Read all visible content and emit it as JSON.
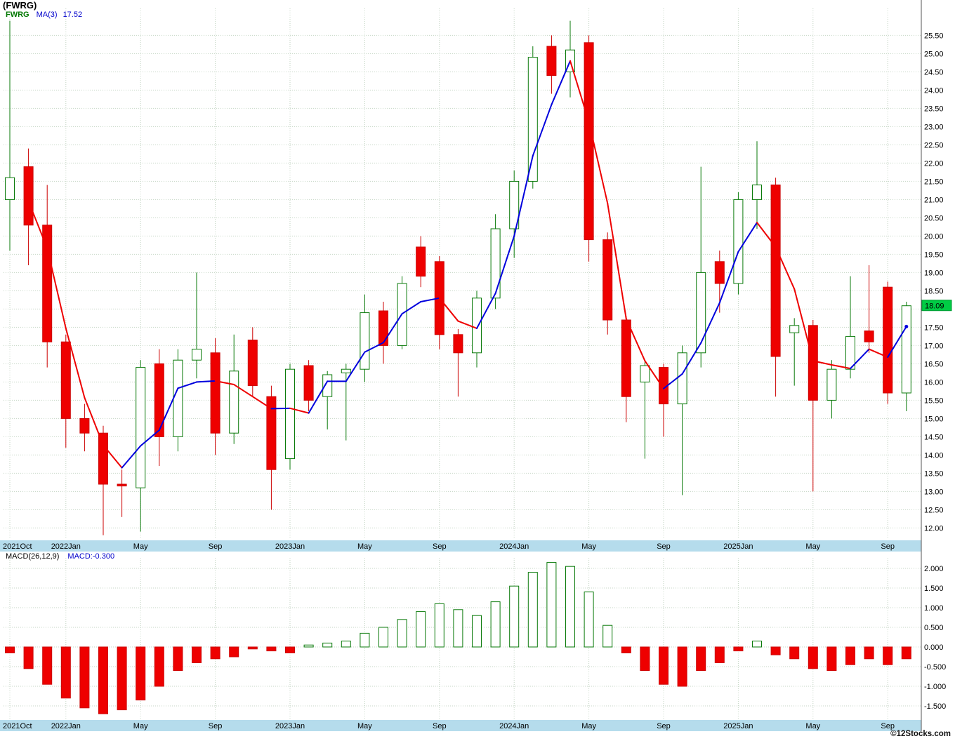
{
  "page": {
    "title": "(FWRG)",
    "watermark": "©12Stocks.com"
  },
  "price_chart": {
    "legend": {
      "symbol": "FWRG",
      "ma_label": "MA(3)",
      "ma_value": "17.52"
    },
    "last_price_label": "18.09"
  },
  "macd_chart": {
    "legend_label": "MACD(26,12,9)",
    "legend_value": "MACD:-0.300"
  },
  "colors": {
    "up_fill": "#ffffff",
    "up_stroke": "#0a7a0a",
    "down_fill": "#ee0000",
    "down_stroke": "#cc0000",
    "ma_rising": "#0000dd",
    "ma_falling": "#ee0000",
    "grid": "#c5d6c5",
    "axis_band": "#b5dcec",
    "axis_text": "#000000",
    "last_price_bg": "#00cc44",
    "separator": "#555555"
  },
  "chart_data": [
    {
      "type": "candlestick",
      "title": "(FWRG)",
      "symbol": "FWRG",
      "x_unit": "month",
      "ylim": [
        11.7,
        26.2
      ],
      "grid": true,
      "y_ticks": [
        25.5,
        25.0,
        24.5,
        24.0,
        23.5,
        23.0,
        22.5,
        22.0,
        21.5,
        21.0,
        20.5,
        20.0,
        19.5,
        19.0,
        18.5,
        18.0,
        17.5,
        17.0,
        16.5,
        16.0,
        15.5,
        15.0,
        14.5,
        14.0,
        13.5,
        13.0,
        12.5,
        12.0
      ],
      "hidden_y_tick": 18.0,
      "last_close": 18.09,
      "ma_period": 3,
      "ma_last_shown": 17.52,
      "x_tick_indices": [
        0,
        3,
        7,
        11,
        15,
        19,
        23,
        27,
        31,
        35,
        39,
        43,
        47
      ],
      "x_tick_labels": [
        "2021Oct",
        "2022Jan",
        "May",
        "Sep",
        "2023Jan",
        "May",
        "Sep",
        "2024Jan",
        "May",
        "Sep",
        "2025Jan",
        "May",
        "Sep"
      ],
      "months": [
        "2021-10",
        "2021-11",
        "2021-12",
        "2022-01",
        "2022-02",
        "2022-03",
        "2022-04",
        "2022-05",
        "2022-06",
        "2022-07",
        "2022-08",
        "2022-09",
        "2022-10",
        "2022-11",
        "2022-12",
        "2023-01",
        "2023-02",
        "2023-03",
        "2023-04",
        "2023-05",
        "2023-06",
        "2023-07",
        "2023-08",
        "2023-09",
        "2023-10",
        "2023-11",
        "2023-12",
        "2024-01",
        "2024-02",
        "2024-03",
        "2024-04",
        "2024-05",
        "2024-06",
        "2024-07",
        "2024-08",
        "2024-09",
        "2024-10",
        "2024-11",
        "2024-12",
        "2025-01",
        "2025-02",
        "2025-03",
        "2025-04",
        "2025-05",
        "2025-06",
        "2025-07",
        "2025-08",
        "2025-09",
        "2025-10"
      ],
      "ohlc": [
        [
          21.0,
          25.9,
          19.6,
          21.6
        ],
        [
          21.9,
          22.4,
          19.2,
          20.3
        ],
        [
          20.3,
          21.4,
          16.4,
          17.1
        ],
        [
          17.1,
          17.3,
          14.2,
          15.0
        ],
        [
          15.0,
          15.4,
          14.1,
          14.6
        ],
        [
          14.6,
          14.8,
          11.8,
          13.2
        ],
        [
          13.2,
          13.6,
          12.3,
          13.15
        ],
        [
          13.1,
          16.6,
          11.9,
          16.4
        ],
        [
          16.5,
          16.9,
          13.7,
          14.5
        ],
        [
          14.5,
          16.9,
          14.1,
          16.6
        ],
        [
          16.6,
          19.0,
          16.1,
          16.9
        ],
        [
          16.8,
          17.2,
          14.0,
          14.6
        ],
        [
          14.6,
          17.3,
          14.3,
          16.3
        ],
        [
          17.15,
          17.5,
          15.6,
          15.9
        ],
        [
          15.6,
          15.9,
          12.5,
          13.6
        ],
        [
          13.9,
          16.5,
          13.6,
          16.35
        ],
        [
          16.45,
          16.6,
          15.2,
          15.5
        ],
        [
          15.6,
          16.3,
          14.7,
          16.2
        ],
        [
          16.25,
          16.5,
          14.4,
          16.35
        ],
        [
          16.35,
          18.4,
          16.0,
          17.9
        ],
        [
          17.95,
          18.2,
          16.5,
          17.0
        ],
        [
          17.0,
          18.9,
          16.9,
          18.7
        ],
        [
          19.7,
          20.0,
          18.6,
          18.9
        ],
        [
          19.3,
          19.45,
          16.9,
          17.3
        ],
        [
          17.3,
          17.45,
          15.6,
          16.8
        ],
        [
          16.8,
          18.5,
          16.4,
          18.3
        ],
        [
          18.3,
          20.6,
          18.0,
          20.2
        ],
        [
          20.2,
          21.8,
          19.4,
          21.5
        ],
        [
          21.5,
          25.2,
          21.3,
          24.9
        ],
        [
          25.2,
          25.5,
          23.9,
          24.4
        ],
        [
          24.5,
          25.9,
          23.8,
          25.1
        ],
        [
          25.3,
          25.5,
          19.3,
          19.9
        ],
        [
          19.9,
          20.1,
          17.3,
          17.7
        ],
        [
          17.7,
          17.8,
          14.9,
          15.6
        ],
        [
          16.0,
          16.6,
          13.9,
          16.45
        ],
        [
          16.4,
          16.5,
          14.5,
          15.4
        ],
        [
          15.4,
          17.0,
          12.9,
          16.8
        ],
        [
          16.8,
          21.9,
          16.4,
          19.0
        ],
        [
          19.3,
          19.6,
          17.9,
          18.7
        ],
        [
          18.7,
          21.2,
          18.4,
          21.0
        ],
        [
          21.0,
          22.6,
          20.2,
          21.4
        ],
        [
          21.4,
          21.6,
          15.6,
          16.7
        ],
        [
          17.35,
          17.75,
          15.9,
          17.55
        ],
        [
          17.55,
          17.7,
          13.0,
          15.5
        ],
        [
          15.5,
          16.6,
          15.0,
          16.35
        ],
        [
          16.35,
          18.9,
          16.1,
          17.25
        ],
        [
          17.4,
          19.2,
          16.8,
          17.1
        ],
        [
          18.6,
          18.75,
          15.4,
          15.7
        ],
        [
          15.7,
          18.2,
          15.2,
          18.09
        ]
      ],
      "ma3": [
        null,
        20.95,
        19.67,
        17.47,
        15.57,
        14.27,
        13.65,
        14.25,
        14.68,
        15.83,
        16.0,
        16.03,
        15.93,
        15.6,
        15.27,
        15.28,
        15.15,
        16.02,
        16.02,
        16.82,
        17.08,
        17.87,
        18.2,
        18.3,
        17.67,
        17.47,
        18.43,
        20.0,
        22.2,
        23.6,
        24.8,
        23.13,
        20.9,
        17.73,
        16.58,
        15.82,
        16.22,
        17.07,
        18.17,
        19.57,
        20.37,
        19.7,
        18.55,
        16.58,
        16.47,
        16.37,
        16.9,
        16.68,
        17.52
      ]
    },
    {
      "type": "bar",
      "title": "MACD(26,12,9)",
      "last_value": -0.3,
      "ylim": [
        -1.9,
        2.4
      ],
      "grid": true,
      "y_ticks": [
        2.0,
        1.5,
        1.0,
        0.5,
        0.0,
        -0.5,
        -1.0,
        -1.5
      ],
      "values": [
        -0.15,
        -0.55,
        -0.95,
        -1.3,
        -1.55,
        -1.7,
        -1.6,
        -1.35,
        -1.0,
        -0.6,
        -0.4,
        -0.3,
        -0.25,
        -0.05,
        -0.1,
        -0.15,
        0.05,
        0.1,
        0.15,
        0.35,
        0.5,
        0.7,
        0.9,
        1.1,
        0.95,
        0.8,
        1.15,
        1.55,
        1.9,
        2.15,
        2.05,
        1.4,
        0.55,
        -0.15,
        -0.6,
        -0.95,
        -1.0,
        -0.6,
        -0.4,
        -0.1,
        0.15,
        -0.2,
        -0.3,
        -0.55,
        -0.6,
        -0.45,
        -0.3,
        -0.45,
        -0.3
      ]
    }
  ]
}
